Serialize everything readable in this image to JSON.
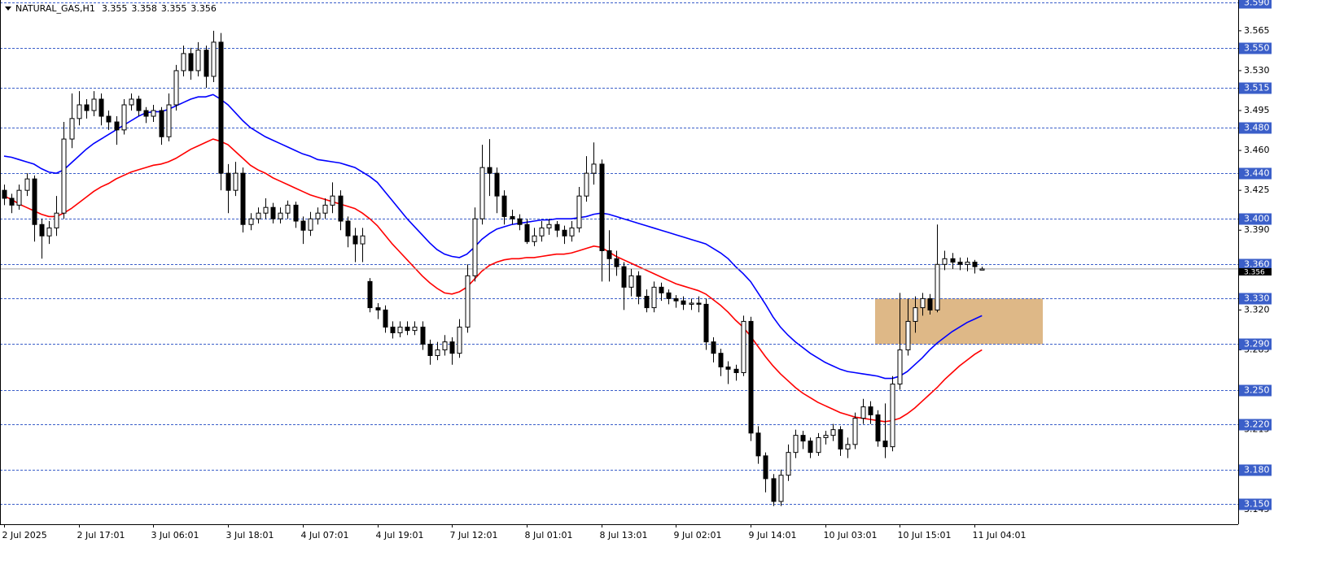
{
  "chart_data": {
    "type": "candlestick",
    "symbol": "NATURAL_GAS,H1",
    "ohlc": [
      3.355,
      3.358,
      3.355,
      3.356
    ],
    "categories": [
      "2 Jul 2025",
      null,
      null,
      null,
      null,
      null,
      null,
      null,
      null,
      null,
      "2 Jul 17:01",
      null,
      null,
      null,
      null,
      null,
      null,
      null,
      null,
      null,
      "3 Jul 06:01",
      null,
      null,
      null,
      null,
      null,
      null,
      null,
      null,
      null,
      "3 Jul 18:01",
      null,
      null,
      null,
      null,
      null,
      null,
      null,
      null,
      null,
      "4 Jul 07:01",
      null,
      null,
      null,
      null,
      null,
      null,
      null,
      null,
      null,
      "4 Jul 19:01",
      null,
      null,
      null,
      null,
      null,
      null,
      null,
      null,
      null,
      "7 Jul 12:01",
      null,
      null,
      null,
      null,
      null,
      null,
      null,
      null,
      null,
      "8 Jul 01:01",
      null,
      null,
      null,
      null,
      null,
      null,
      null,
      null,
      null,
      "8 Jul 13:01",
      null,
      null,
      null,
      null,
      null,
      null,
      null,
      null,
      null,
      "9 Jul 02:01",
      null,
      null,
      null,
      null,
      null,
      null,
      null,
      null,
      null,
      "9 Jul 14:01",
      null,
      null,
      null,
      null,
      null,
      null,
      null,
      null,
      null,
      "10 Jul 03:01",
      null,
      null,
      null,
      null,
      null,
      null,
      null,
      null,
      null,
      "10 Jul 15:01",
      null,
      null,
      null,
      null,
      null,
      null,
      null,
      null,
      null,
      "11 Jul 04:01",
      null
    ],
    "open": [
      3.425,
      3.418,
      3.412,
      3.425,
      3.435,
      3.395,
      3.385,
      3.392,
      3.405,
      3.47,
      3.488,
      3.5,
      3.495,
      3.505,
      3.49,
      3.485,
      3.478,
      3.5,
      3.505,
      3.495,
      3.49,
      3.495,
      3.472,
      3.5,
      3.53,
      3.545,
      3.53,
      3.548,
      3.525,
      3.555,
      3.44,
      3.425,
      3.44,
      3.395,
      3.4,
      3.405,
      3.41,
      3.4,
      3.405,
      3.412,
      3.398,
      3.39,
      3.4,
      3.405,
      3.412,
      3.42,
      3.398,
      3.385,
      3.378,
      3.345,
      3.322,
      3.32,
      3.305,
      3.3,
      3.305,
      3.302,
      3.305,
      3.29,
      3.28,
      3.285,
      3.292,
      3.282,
      3.305,
      3.35,
      3.4,
      3.445,
      3.44,
      3.42,
      3.402,
      3.4,
      3.395,
      3.38,
      3.385,
      3.392,
      3.395,
      3.39,
      3.385,
      3.392,
      3.42,
      3.44,
      3.448,
      3.372,
      3.365,
      3.358,
      3.34,
      3.35,
      3.332,
      3.322,
      3.34,
      3.335,
      3.33,
      3.328,
      3.325,
      3.326,
      3.325,
      3.292,
      3.282,
      3.27,
      3.268,
      3.265,
      3.31,
      3.212,
      3.192,
      3.172,
      3.152,
      3.175,
      3.195,
      3.21,
      3.205,
      3.195,
      3.208,
      3.21,
      3.215,
      3.198,
      3.202,
      3.225,
      3.235,
      3.228,
      3.205,
      3.2,
      3.255,
      3.285,
      3.31,
      3.322,
      3.33,
      3.32,
      3.36,
      3.365,
      3.362,
      3.36,
      3.362,
      3.355
    ],
    "high": [
      3.43,
      3.422,
      3.43,
      3.44,
      3.438,
      3.4,
      3.398,
      3.42,
      3.485,
      3.51,
      3.512,
      3.505,
      3.512,
      3.51,
      3.495,
      3.49,
      3.505,
      3.51,
      3.508,
      3.498,
      3.5,
      3.498,
      3.51,
      3.535,
      3.552,
      3.55,
      3.555,
      3.552,
      3.565,
      3.563,
      3.448,
      3.45,
      3.445,
      3.405,
      3.41,
      3.418,
      3.414,
      3.41,
      3.416,
      3.415,
      3.402,
      3.406,
      3.41,
      3.418,
      3.432,
      3.425,
      3.402,
      3.392,
      3.392,
      3.348,
      3.326,
      3.324,
      3.31,
      3.31,
      3.31,
      3.31,
      3.31,
      3.294,
      3.292,
      3.298,
      3.296,
      3.312,
      3.36,
      3.41,
      3.465,
      3.47,
      3.445,
      3.425,
      3.408,
      3.404,
      3.4,
      3.392,
      3.398,
      3.4,
      3.398,
      3.394,
      3.398,
      3.428,
      3.455,
      3.467,
      3.452,
      3.39,
      3.372,
      3.362,
      3.356,
      3.354,
      3.338,
      3.345,
      3.344,
      3.338,
      3.333,
      3.332,
      3.33,
      3.332,
      3.33,
      3.296,
      3.286,
      3.275,
      3.272,
      3.315,
      3.314,
      3.218,
      3.195,
      3.176,
      3.18,
      3.202,
      3.215,
      3.214,
      3.208,
      3.212,
      3.214,
      3.22,
      3.218,
      3.208,
      3.23,
      3.242,
      3.24,
      3.232,
      3.238,
      3.262,
      3.335,
      3.33,
      3.332,
      3.335,
      3.334,
      3.395,
      3.372,
      3.37,
      3.366,
      3.366,
      3.364,
      3.358
    ],
    "low": [
      3.412,
      3.405,
      3.408,
      3.42,
      3.38,
      3.365,
      3.378,
      3.385,
      3.4,
      3.462,
      3.482,
      3.488,
      3.49,
      3.482,
      3.478,
      3.465,
      3.474,
      3.495,
      3.49,
      3.484,
      3.485,
      3.465,
      3.468,
      3.495,
      3.525,
      3.522,
      3.525,
      3.515,
      3.52,
      3.425,
      3.405,
      3.42,
      3.388,
      3.39,
      3.396,
      3.4,
      3.396,
      3.396,
      3.4,
      3.392,
      3.378,
      3.385,
      3.395,
      3.4,
      3.405,
      3.39,
      3.375,
      3.362,
      3.362,
      3.318,
      3.312,
      3.3,
      3.295,
      3.296,
      3.298,
      3.298,
      3.285,
      3.272,
      3.276,
      3.28,
      3.272,
      3.278,
      3.3,
      3.345,
      3.395,
      3.42,
      3.405,
      3.395,
      3.395,
      3.39,
      3.378,
      3.376,
      3.38,
      3.386,
      3.384,
      3.378,
      3.38,
      3.388,
      3.415,
      3.43,
      3.345,
      3.345,
      3.35,
      3.32,
      3.332,
      3.325,
      3.318,
      3.318,
      3.328,
      3.325,
      3.322,
      3.32,
      3.32,
      3.318,
      3.285,
      3.274,
      3.262,
      3.255,
      3.258,
      3.262,
      3.205,
      3.185,
      3.16,
      3.148,
      3.148,
      3.17,
      3.19,
      3.198,
      3.19,
      3.192,
      3.202,
      3.205,
      3.192,
      3.19,
      3.198,
      3.22,
      3.22,
      3.2,
      3.19,
      3.196,
      3.25,
      3.28,
      3.3,
      3.315,
      3.316,
      3.318,
      3.355,
      3.356,
      3.355,
      3.354,
      3.352,
      3.355
    ],
    "close": [
      3.418,
      3.412,
      3.425,
      3.435,
      3.395,
      3.385,
      3.392,
      3.405,
      3.47,
      3.488,
      3.5,
      3.495,
      3.505,
      3.49,
      3.485,
      3.478,
      3.5,
      3.505,
      3.495,
      3.49,
      3.495,
      3.472,
      3.5,
      3.53,
      3.545,
      3.53,
      3.548,
      3.525,
      3.555,
      3.44,
      3.425,
      3.44,
      3.395,
      3.4,
      3.405,
      3.41,
      3.4,
      3.405,
      3.412,
      3.398,
      3.39,
      3.4,
      3.405,
      3.412,
      3.42,
      3.398,
      3.385,
      3.378,
      3.385,
      3.322,
      3.32,
      3.305,
      3.3,
      3.305,
      3.302,
      3.305,
      3.29,
      3.28,
      3.285,
      3.292,
      3.282,
      3.305,
      3.35,
      3.4,
      3.445,
      3.44,
      3.42,
      3.402,
      3.4,
      3.395,
      3.38,
      3.385,
      3.392,
      3.395,
      3.39,
      3.385,
      3.392,
      3.42,
      3.44,
      3.448,
      3.372,
      3.365,
      3.358,
      3.34,
      3.35,
      3.332,
      3.322,
      3.34,
      3.335,
      3.33,
      3.328,
      3.325,
      3.326,
      3.325,
      3.292,
      3.282,
      3.27,
      3.268,
      3.265,
      3.31,
      3.212,
      3.192,
      3.172,
      3.152,
      3.175,
      3.195,
      3.21,
      3.205,
      3.195,
      3.208,
      3.21,
      3.215,
      3.198,
      3.202,
      3.225,
      3.235,
      3.228,
      3.205,
      3.2,
      3.255,
      3.285,
      3.31,
      3.322,
      3.33,
      3.32,
      3.36,
      3.365,
      3.362,
      3.36,
      3.362,
      3.358,
      3.356
    ],
    "lines": [
      {
        "color": "#0000ff",
        "values": [
          3.455,
          3.454,
          3.452,
          3.45,
          3.448,
          3.444,
          3.441,
          3.44,
          3.443,
          3.449,
          3.455,
          3.461,
          3.466,
          3.47,
          3.474,
          3.478,
          3.482,
          3.486,
          3.49,
          3.493,
          3.494,
          3.494,
          3.496,
          3.499,
          3.502,
          3.505,
          3.507,
          3.507,
          3.509,
          3.505,
          3.5,
          3.493,
          3.486,
          3.48,
          3.476,
          3.472,
          3.469,
          3.466,
          3.463,
          3.46,
          3.457,
          3.455,
          3.452,
          3.451,
          3.45,
          3.449,
          3.447,
          3.445,
          3.441,
          3.437,
          3.432,
          3.424,
          3.416,
          3.408,
          3.4,
          3.393,
          3.386,
          3.379,
          3.373,
          3.369,
          3.367,
          3.366,
          3.369,
          3.375,
          3.382,
          3.387,
          3.391,
          3.393,
          3.395,
          3.396,
          3.397,
          3.398,
          3.399,
          3.399,
          3.4,
          3.4,
          3.4,
          3.401,
          3.402,
          3.404,
          3.405,
          3.404,
          3.402,
          3.4,
          3.398,
          3.396,
          3.394,
          3.392,
          3.39,
          3.388,
          3.386,
          3.384,
          3.382,
          3.38,
          3.378,
          3.374,
          3.37,
          3.365,
          3.358,
          3.352,
          3.345,
          3.335,
          3.325,
          3.314,
          3.305,
          3.298,
          3.292,
          3.287,
          3.282,
          3.278,
          3.274,
          3.271,
          3.268,
          3.266,
          3.265,
          3.264,
          3.263,
          3.262,
          3.26,
          3.26,
          3.262,
          3.266,
          3.272,
          3.278,
          3.285,
          3.291,
          3.296,
          3.301,
          3.305,
          3.309,
          3.312,
          3.315
        ]
      },
      {
        "color": "#ff0000",
        "values": [
          3.42,
          3.417,
          3.413,
          3.41,
          3.407,
          3.404,
          3.402,
          3.402,
          3.405,
          3.409,
          3.414,
          3.419,
          3.424,
          3.428,
          3.431,
          3.435,
          3.438,
          3.441,
          3.443,
          3.445,
          3.447,
          3.448,
          3.45,
          3.453,
          3.457,
          3.461,
          3.464,
          3.467,
          3.47,
          3.468,
          3.465,
          3.459,
          3.453,
          3.447,
          3.443,
          3.44,
          3.436,
          3.433,
          3.43,
          3.427,
          3.424,
          3.421,
          3.419,
          3.417,
          3.415,
          3.413,
          3.411,
          3.409,
          3.405,
          3.4,
          3.394,
          3.386,
          3.378,
          3.371,
          3.364,
          3.357,
          3.35,
          3.344,
          3.339,
          3.335,
          3.334,
          3.336,
          3.34,
          3.347,
          3.354,
          3.359,
          3.362,
          3.364,
          3.365,
          3.365,
          3.366,
          3.366,
          3.367,
          3.368,
          3.369,
          3.369,
          3.37,
          3.372,
          3.374,
          3.376,
          3.375,
          3.371,
          3.367,
          3.364,
          3.361,
          3.358,
          3.355,
          3.352,
          3.349,
          3.346,
          3.343,
          3.341,
          3.339,
          3.337,
          3.334,
          3.329,
          3.324,
          3.318,
          3.311,
          3.305,
          3.297,
          3.288,
          3.279,
          3.271,
          3.264,
          3.258,
          3.252,
          3.247,
          3.243,
          3.239,
          3.236,
          3.233,
          3.23,
          3.228,
          3.226,
          3.225,
          3.224,
          3.223,
          3.222,
          3.223,
          3.225,
          3.229,
          3.234,
          3.24,
          3.246,
          3.252,
          3.259,
          3.265,
          3.271,
          3.276,
          3.281,
          3.285
        ]
      }
    ],
    "zone": {
      "low": 3.29,
      "high": 3.33,
      "color": "#deb887"
    },
    "ylim": [
      3.132,
      3.592
    ],
    "yticks": [
      {
        "value": 3.145,
        "label": "3.145"
      },
      {
        "value": 3.18,
        "label": "3.180"
      },
      3.215,
      {
        "value": 3.25,
        "label": "3.250"
      },
      3.285,
      {
        "value": 3.32,
        "label": "3.320"
      },
      3.355,
      {
        "value": 3.39,
        "label": "3.390"
      },
      3.425,
      {
        "value": 3.46,
        "label": "3.460"
      },
      3.495,
      {
        "value": 3.53,
        "label": "3.530"
      },
      3.565
    ],
    "levels": [
      {
        "value": 3.59,
        "label": "3.590"
      },
      {
        "value": 3.55,
        "label": "3.550"
      },
      3.515,
      {
        "value": 3.48,
        "label": "3.480"
      },
      {
        "value": 3.44,
        "label": "3.440"
      },
      {
        "value": 3.4,
        "label": "3.400"
      },
      {
        "value": 3.36,
        "label": "3.360"
      },
      {
        "value": 3.33,
        "label": "3.330"
      },
      {
        "value": 3.29,
        "label": "3.290"
      },
      {
        "value": 3.25,
        "label": "3.250"
      },
      {
        "value": 3.22,
        "label": "3.220"
      },
      {
        "value": 3.18,
        "label": "3.180"
      },
      {
        "value": 3.15,
        "label": "3.150"
      }
    ],
    "level_color": "#3b5fc9",
    "last_price": 3.356
  }
}
